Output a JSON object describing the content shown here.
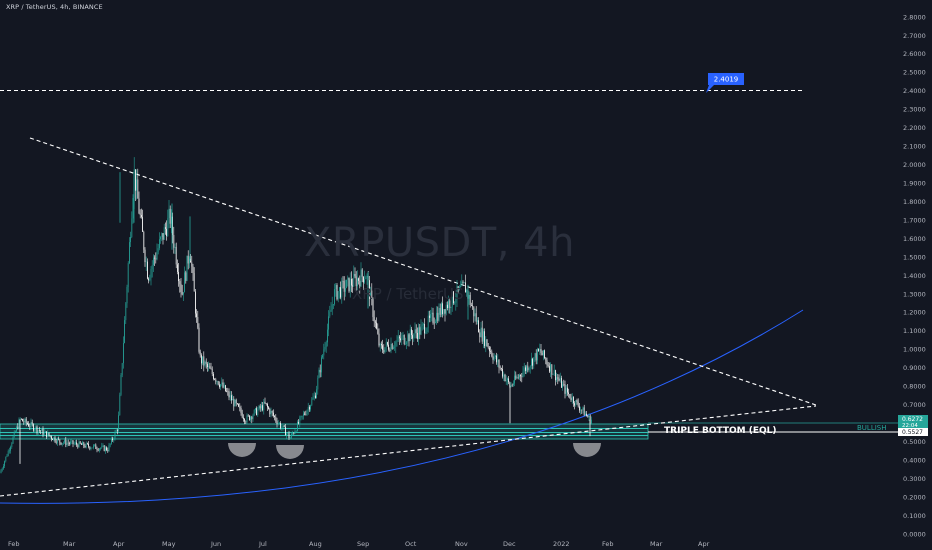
{
  "header": {
    "title": "XRP / TetherUS, 4h, BINANCE"
  },
  "watermark": {
    "symbol": "XRPUSDT, 4h",
    "description": "XRP / TetherUS"
  },
  "annotations": {
    "target_price": "2.4019",
    "triple_bottom": "TRIPLE BOTTOM (EQL)",
    "bullish": "BULLISH"
  },
  "price_tags": {
    "last_price": "0.6272",
    "countdown": "22:04",
    "low_price": "0.5527"
  },
  "colors": {
    "background": "#131722",
    "candle": "#26a69a",
    "trendline": "#ffffff",
    "curve": "#2962ff",
    "support_zone": "#2ec4b6",
    "target_tag": "#2962ff"
  },
  "chart_data": {
    "type": "candlestick",
    "symbol": "XRP / TetherUS",
    "interval": "4h",
    "exchange": "BINANCE",
    "y_ticks": [
      "2.8000",
      "2.7000",
      "2.6000",
      "2.5000",
      "2.4000",
      "2.3000",
      "2.2000",
      "2.1000",
      "2.0000",
      "1.9000",
      "1.8000",
      "1.7000",
      "1.6000",
      "1.5000",
      "1.4000",
      "1.3000",
      "1.2000",
      "1.1000",
      "1.0000",
      "0.9000",
      "0.8000",
      "0.7000",
      "0.6000",
      "0.5000",
      "0.4000",
      "0.3000",
      "0.2000",
      "0.1000",
      "0.0000"
    ],
    "x_ticks": [
      "Feb",
      "Mar",
      "Apr",
      "May",
      "Jun",
      "Jul",
      "Aug",
      "Sep",
      "Oct",
      "Nov",
      "Dec",
      "2022",
      "Feb",
      "Mar",
      "Apr"
    ],
    "ylim": [
      0.0,
      2.85
    ],
    "price_path": [
      {
        "t": "Feb",
        "p": 0.33
      },
      {
        "t": "Feb",
        "p": 0.62
      },
      {
        "t": "Mar",
        "p": 0.5
      },
      {
        "t": "Mar",
        "p": 0.46
      },
      {
        "t": "Apr",
        "p": 0.58
      },
      {
        "t": "Apr",
        "p": 1.96
      },
      {
        "t": "Apr",
        "p": 1.4
      },
      {
        "t": "May",
        "p": 1.72
      },
      {
        "t": "May",
        "p": 1.3
      },
      {
        "t": "May",
        "p": 1.55
      },
      {
        "t": "Jun",
        "p": 0.95
      },
      {
        "t": "Jun",
        "p": 0.83
      },
      {
        "t": "Jun",
        "p": 0.62
      },
      {
        "t": "Jul",
        "p": 0.7
      },
      {
        "t": "Jul",
        "p": 0.52
      },
      {
        "t": "Aug",
        "p": 0.75
      },
      {
        "t": "Aug",
        "p": 1.3
      },
      {
        "t": "Sep",
        "p": 1.41
      },
      {
        "t": "Sep",
        "p": 1.0
      },
      {
        "t": "Oct",
        "p": 1.1
      },
      {
        "t": "Nov",
        "p": 1.34
      },
      {
        "t": "Nov",
        "p": 1.1
      },
      {
        "t": "Dec",
        "p": 0.8
      },
      {
        "t": "Dec",
        "p": 0.99
      },
      {
        "t": "2022",
        "p": 0.78
      },
      {
        "t": "2022",
        "p": 0.62
      }
    ],
    "levels": {
      "target": 2.4019,
      "last": 0.6272,
      "support_low": 0.5527
    },
    "grid": false
  }
}
